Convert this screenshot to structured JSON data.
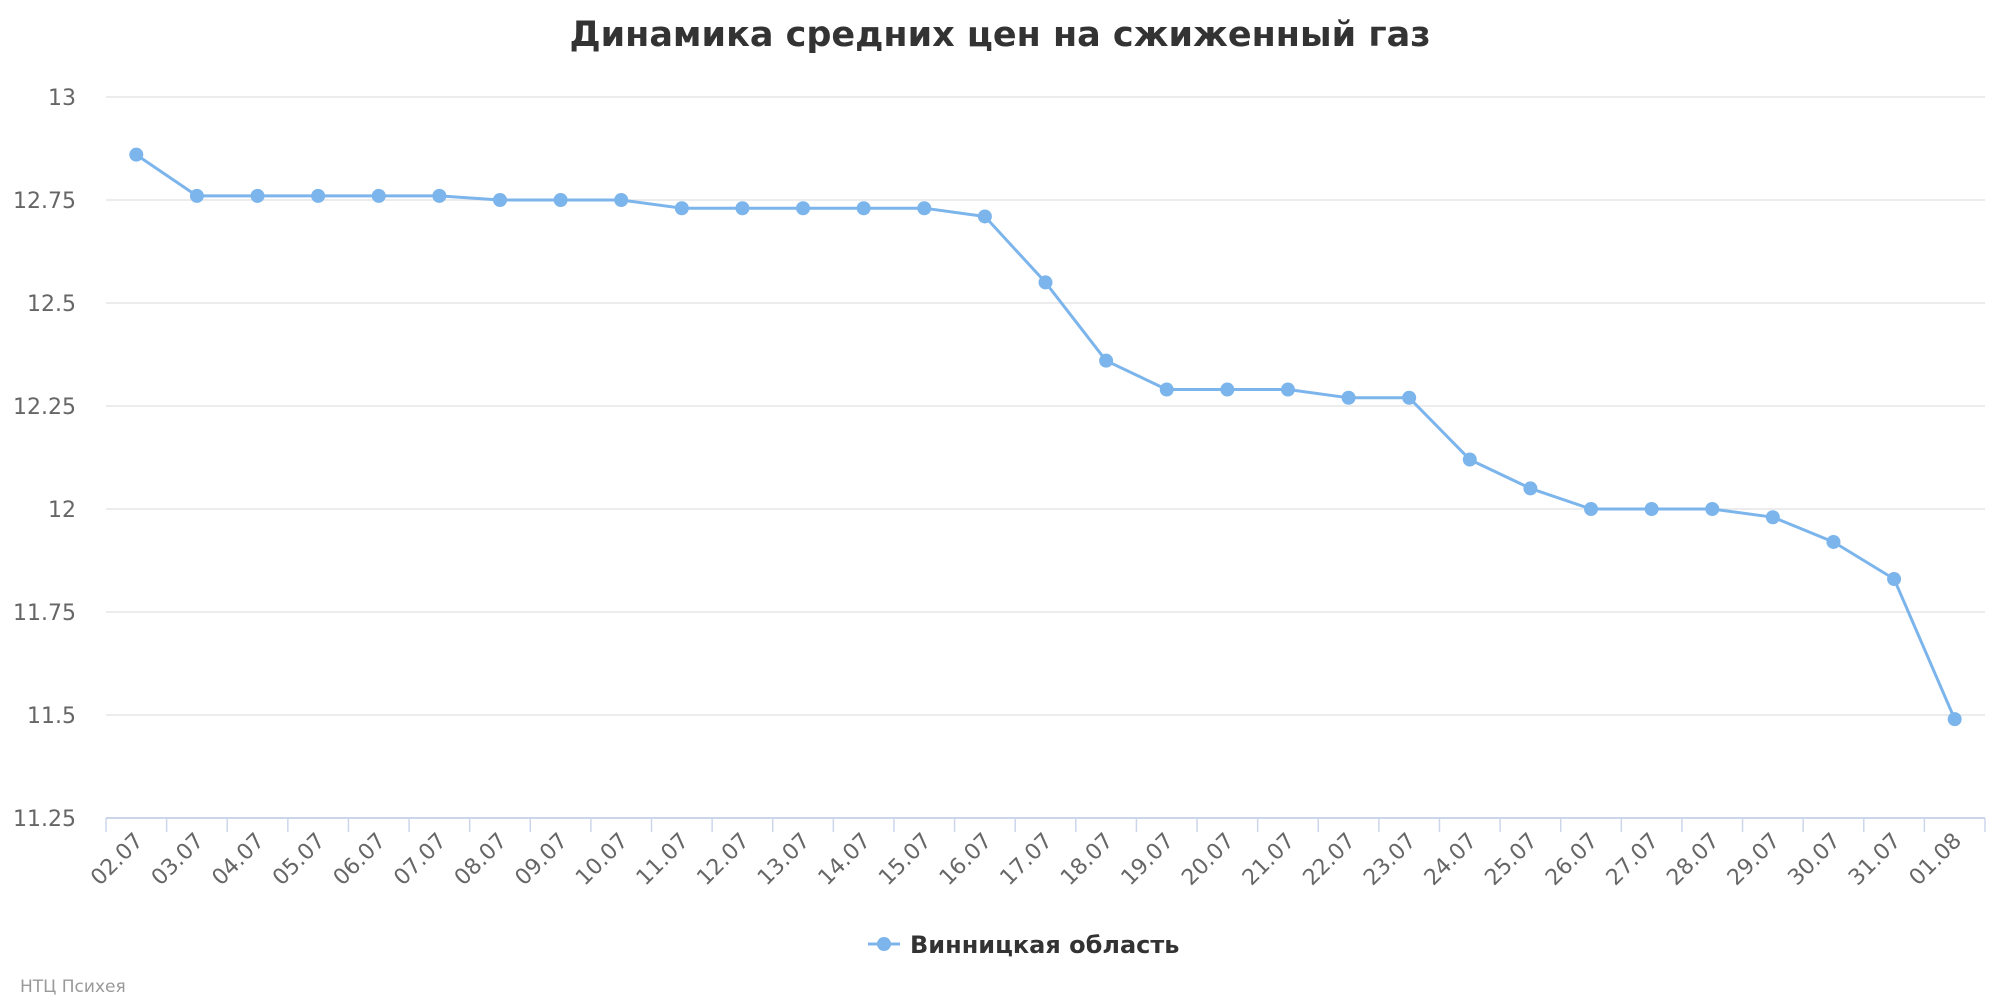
{
  "chart_data": {
    "type": "line",
    "title": "Динамика средних цен на сжиженный газ",
    "xlabel": "",
    "ylabel": "",
    "ylim": [
      11.25,
      13
    ],
    "yticks": [
      "13",
      "12.75",
      "12.5",
      "12.25",
      "12",
      "11.75",
      "11.5",
      "11.25"
    ],
    "grid": true,
    "legend_position": "bottom-center",
    "categories": [
      "02.07",
      "03.07",
      "04.07",
      "05.07",
      "06.07",
      "07.07",
      "08.07",
      "09.07",
      "10.07",
      "11.07",
      "12.07",
      "13.07",
      "14.07",
      "15.07",
      "16.07",
      "17.07",
      "18.07",
      "19.07",
      "20.07",
      "21.07",
      "22.07",
      "23.07",
      "24.07",
      "25.07",
      "26.07",
      "27.07",
      "28.07",
      "29.07",
      "30.07",
      "31.07",
      "01.08"
    ],
    "series": [
      {
        "name": "Винницкая область",
        "color": "#7cb5ec",
        "values": [
          12.86,
          12.76,
          12.76,
          12.76,
          12.76,
          12.76,
          12.75,
          12.75,
          12.75,
          12.73,
          12.73,
          12.73,
          12.73,
          12.73,
          12.71,
          12.55,
          12.36,
          12.29,
          12.29,
          12.29,
          12.27,
          12.27,
          12.12,
          12.05,
          12.0,
          12.0,
          12.0,
          11.98,
          11.92,
          11.83,
          11.49
        ]
      }
    ]
  },
  "credit": "НТЦ Психея",
  "colors": {
    "grid": "#e6e6e6",
    "axis": "#ccd6eb",
    "series": "#7cb5ec"
  }
}
